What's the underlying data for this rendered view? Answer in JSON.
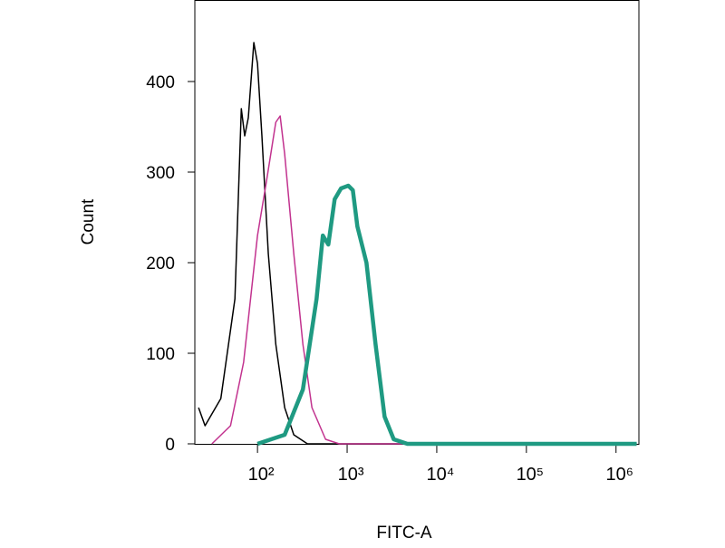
{
  "chart_data": {
    "type": "line",
    "xlabel": "FITC-A",
    "ylabel": "Count",
    "xscale": "log",
    "xlim": [
      20,
      1800000
    ],
    "ylim": [
      0,
      490
    ],
    "xticks": [
      {
        "value": 100,
        "label": "10²"
      },
      {
        "value": 1000,
        "label": "10³"
      },
      {
        "value": 10000,
        "label": "10⁴"
      },
      {
        "value": 100000,
        "label": "10⁵"
      },
      {
        "value": 1000000,
        "label": "10⁶"
      }
    ],
    "yticks": [
      0,
      100,
      200,
      300,
      400
    ],
    "series": [
      {
        "color": "#000000",
        "width": 1.5,
        "x": [
          22,
          26,
          39,
          56,
          66,
          72,
          79,
          91,
          100,
          112,
          132,
          160,
          201,
          254,
          361,
          1700000
        ],
        "values": [
          40,
          20,
          50,
          160,
          370,
          340,
          360,
          443,
          420,
          340,
          210,
          110,
          40,
          10,
          0,
          0
        ]
      },
      {
        "color": "#c2338f",
        "width": 1.5,
        "x": [
          31,
          50,
          70,
          100,
          126,
          160,
          179,
          201,
          254,
          321,
          405,
          575,
          816,
          1700000
        ],
        "values": [
          0,
          20,
          90,
          230,
          290,
          355,
          362,
          320,
          210,
          110,
          40,
          5,
          0,
          0
        ]
      },
      {
        "color": "#1f9a82",
        "width": 4.5,
        "x": [
          100,
          201,
          321,
          456,
          536,
          617,
          726,
          855,
          1030,
          1158,
          1301,
          1643,
          2075,
          2618,
          3311,
          4700,
          1700000
        ],
        "values": [
          0,
          10,
          60,
          160,
          230,
          220,
          270,
          282,
          285,
          280,
          240,
          200,
          110,
          30,
          5,
          0,
          0
        ]
      }
    ]
  }
}
